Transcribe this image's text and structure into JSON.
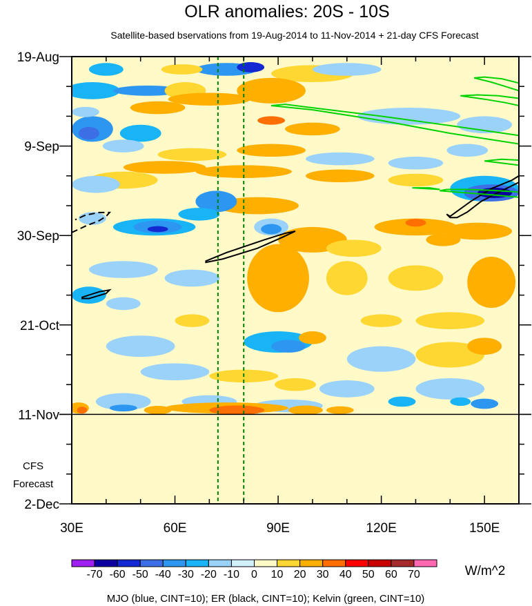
{
  "chart_data": {
    "type": "heatmap",
    "title": "OLR anomalies: 20S - 10S",
    "subtitle": "Satellite-based bservations from 19-Aug-2014 to 11-Nov-2014 + 21-day CFS Forecast",
    "xlabel": "",
    "ylabel": "",
    "xlim": [
      30,
      160
    ],
    "ylim_days": [
      0,
      105
    ],
    "x_ticks": [
      {
        "value": 30,
        "label": "30E"
      },
      {
        "value": 60,
        "label": "60E"
      },
      {
        "value": 90,
        "label": "90E"
      },
      {
        "value": 120,
        "label": "120E"
      },
      {
        "value": 150,
        "label": "150E"
      }
    ],
    "y_ticks": [
      {
        "day": 0,
        "label": "19-Aug"
      },
      {
        "day": 21,
        "label": "9-Sep"
      },
      {
        "day": 42,
        "label": "30-Sep"
      },
      {
        "day": 63,
        "label": "21-Oct"
      },
      {
        "day": 84,
        "label": "11-Nov"
      },
      {
        "day": 105,
        "label": "2-Dec"
      }
    ],
    "forecast_label": [
      "CFS",
      "Forecast"
    ],
    "observation_end_day": 84,
    "reference_lines_lon": [
      72.5,
      80
    ],
    "colorbar": {
      "unit": "W/m^2",
      "levels": [
        -70,
        -60,
        -50,
        -40,
        -30,
        -20,
        -10,
        0,
        10,
        20,
        30,
        40,
        50,
        60,
        70
      ],
      "colors": [
        "#a020f0",
        "#0c00a0",
        "#1428d2",
        "#3c6ee6",
        "#2d96f0",
        "#19b4f5",
        "#9bd2fa",
        "#d2f0fa",
        "#fffac8",
        "#ffd732",
        "#ffaf00",
        "#ff6e00",
        "#ff0000",
        "#c80000",
        "#a52a2a",
        "#ff69b4"
      ]
    },
    "contour_legend": "MJO (blue, CINT=10); ER (black, CINT=10); Kelvin (green, CINT=10)",
    "colors": {
      "er": "#000000",
      "kelvin": "#00d200",
      "mjo": "#0000ff",
      "reference": "#008000"
    },
    "anomaly_patches": [
      {
        "lon": 75,
        "day": 3,
        "rlon": 9,
        "rday": 1.5,
        "value": -30
      },
      {
        "lon": 82,
        "day": 2.5,
        "rlon": 4,
        "rday": 1.2,
        "value": -50
      },
      {
        "lon": 40,
        "day": 3,
        "rlon": 5,
        "rday": 1.5,
        "value": -20
      },
      {
        "lon": 62,
        "day": 3,
        "rlon": 6,
        "rday": 1.2,
        "value": 10
      },
      {
        "lon": 100,
        "day": 4,
        "rlon": 12,
        "rday": 2,
        "value": 10
      },
      {
        "lon": 110,
        "day": 3,
        "rlon": 10,
        "rday": 1.5,
        "value": -10
      },
      {
        "lon": 36,
        "day": 8,
        "rlon": 8,
        "rday": 2,
        "value": -20
      },
      {
        "lon": 52,
        "day": 8,
        "rlon": 10,
        "rday": 1.2,
        "value": -30
      },
      {
        "lon": 63,
        "day": 8,
        "rlon": 6,
        "rday": 2,
        "value": 10
      },
      {
        "lon": 88,
        "day": 8,
        "rlon": 10,
        "rday": 3,
        "value": 20
      },
      {
        "lon": 70,
        "day": 10,
        "rlon": 12,
        "rday": 1.5,
        "value": 20
      },
      {
        "lon": 55,
        "day": 12,
        "rlon": 8,
        "rday": 1.5,
        "value": 20
      },
      {
        "lon": 88,
        "day": 15,
        "rlon": 4,
        "rday": 1,
        "value": 30
      },
      {
        "lon": 100,
        "day": 17,
        "rlon": 8,
        "rday": 1.5,
        "value": 20
      },
      {
        "lon": 36,
        "day": 17,
        "rlon": 6,
        "rday": 3,
        "value": -30
      },
      {
        "lon": 35,
        "day": 18,
        "rlon": 3,
        "rday": 1.5,
        "value": -40
      },
      {
        "lon": 34,
        "day": 13,
        "rlon": 4,
        "rday": 1.2,
        "value": -10
      },
      {
        "lon": 50,
        "day": 18,
        "rlon": 6,
        "rday": 2,
        "value": -20
      },
      {
        "lon": 128,
        "day": 14,
        "rlon": 15,
        "rday": 2,
        "value": -10
      },
      {
        "lon": 150,
        "day": 16,
        "rlon": 8,
        "rday": 2,
        "value": -10
      },
      {
        "lon": 88,
        "day": 22,
        "rlon": 10,
        "rday": 1.5,
        "value": 20
      },
      {
        "lon": 65,
        "day": 23,
        "rlon": 10,
        "rday": 1.5,
        "value": 10
      },
      {
        "lon": 45,
        "day": 21,
        "rlon": 6,
        "rday": 1.5,
        "value": -10
      },
      {
        "lon": 108,
        "day": 24,
        "rlon": 10,
        "rday": 1.5,
        "value": -10
      },
      {
        "lon": 130,
        "day": 25,
        "rlon": 8,
        "rday": 1.5,
        "value": -10
      },
      {
        "lon": 145,
        "day": 22,
        "rlon": 6,
        "rday": 1.5,
        "value": -10
      },
      {
        "lon": 57,
        "day": 26,
        "rlon": 12,
        "rday": 1.5,
        "value": 20
      },
      {
        "lon": 80,
        "day": 27,
        "rlon": 14,
        "rday": 1.5,
        "value": 20
      },
      {
        "lon": 108,
        "day": 28,
        "rlon": 10,
        "rday": 1.5,
        "value": 20
      },
      {
        "lon": 45,
        "day": 29,
        "rlon": 10,
        "rday": 2,
        "value": 10
      },
      {
        "lon": 37,
        "day": 30,
        "rlon": 7,
        "rday": 2,
        "value": -10
      },
      {
        "lon": 130,
        "day": 29,
        "rlon": 8,
        "rday": 1.5,
        "value": 10
      },
      {
        "lon": 150,
        "day": 31,
        "rlon": 10,
        "rday": 3,
        "value": -20
      },
      {
        "lon": 152,
        "day": 32,
        "rlon": 8,
        "rday": 2,
        "value": -40
      },
      {
        "lon": 153,
        "day": 32,
        "rlon": 5,
        "rday": 1.2,
        "value": -60
      },
      {
        "lon": 84,
        "day": 35,
        "rlon": 12,
        "rday": 2,
        "value": 20
      },
      {
        "lon": 72,
        "day": 34,
        "rlon": 6,
        "rday": 2.5,
        "value": -30
      },
      {
        "lon": 67,
        "day": 37,
        "rlon": 6,
        "rday": 1.5,
        "value": -20
      },
      {
        "lon": 54,
        "day": 40,
        "rlon": 12,
        "rday": 2,
        "value": -20
      },
      {
        "lon": 55,
        "day": 40,
        "rlon": 7,
        "rday": 1.5,
        "value": -30
      },
      {
        "lon": 55,
        "day": 40.5,
        "rlon": 3,
        "rday": 0.7,
        "value": -50
      },
      {
        "lon": 36,
        "day": 38,
        "rlon": 4,
        "rday": 1.5,
        "value": -10
      },
      {
        "lon": 88,
        "day": 40,
        "rlon": 5,
        "rday": 2,
        "value": -10
      },
      {
        "lon": 88,
        "day": 40.5,
        "rlon": 3,
        "rday": 1.2,
        "value": -30
      },
      {
        "lon": 130,
        "day": 40,
        "rlon": 12,
        "rday": 2,
        "value": 20
      },
      {
        "lon": 130,
        "day": 39,
        "rlon": 3,
        "rday": 0.9,
        "value": 30
      },
      {
        "lon": 148,
        "day": 41,
        "rlon": 10,
        "rday": 2,
        "value": 20
      },
      {
        "lon": 138,
        "day": 43,
        "rlon": 5,
        "rday": 1.5,
        "value": 20
      },
      {
        "lon": 100,
        "day": 43,
        "rlon": 10,
        "rday": 3,
        "value": 20
      },
      {
        "lon": 112,
        "day": 45,
        "rlon": 8,
        "rday": 2,
        "value": 10
      },
      {
        "lon": 90,
        "day": 52,
        "rlon": 9,
        "rday": 8,
        "value": 20
      },
      {
        "lon": 110,
        "day": 52,
        "rlon": 6,
        "rday": 4,
        "value": 10
      },
      {
        "lon": 152,
        "day": 53,
        "rlon": 7,
        "rday": 6,
        "value": 20
      },
      {
        "lon": 152,
        "day": 55,
        "rlon": 4,
        "rday": 3,
        "value": 20
      },
      {
        "lon": 130,
        "day": 52,
        "rlon": 8,
        "rday": 3,
        "value": 10
      },
      {
        "lon": 45,
        "day": 50,
        "rlon": 10,
        "rday": 2,
        "value": -10
      },
      {
        "lon": 65,
        "day": 52,
        "rlon": 8,
        "rday": 2,
        "value": -10
      },
      {
        "lon": 35,
        "day": 56,
        "rlon": 5,
        "rday": 2,
        "value": -20
      },
      {
        "lon": 45,
        "day": 58,
        "rlon": 5,
        "rday": 1.5,
        "value": -10
      },
      {
        "lon": 65,
        "day": 62,
        "rlon": 5,
        "rday": 1.5,
        "value": 10
      },
      {
        "lon": 140,
        "day": 62,
        "rlon": 10,
        "rday": 2,
        "value": 10
      },
      {
        "lon": 120,
        "day": 62,
        "rlon": 6,
        "rday": 1.5,
        "value": 10
      },
      {
        "lon": 90,
        "day": 67,
        "rlon": 10,
        "rday": 2.5,
        "value": -20
      },
      {
        "lon": 93,
        "day": 68,
        "rlon": 5,
        "rday": 1.5,
        "value": -30
      },
      {
        "lon": 50,
        "day": 68,
        "rlon": 10,
        "rday": 2.5,
        "value": -10
      },
      {
        "lon": 100,
        "day": 66,
        "rlon": 4,
        "rday": 1.5,
        "value": 20
      },
      {
        "lon": 140,
        "day": 70,
        "rlon": 10,
        "rday": 3,
        "value": 10
      },
      {
        "lon": 150,
        "day": 68,
        "rlon": 5,
        "rday": 2,
        "value": 20
      },
      {
        "lon": 120,
        "day": 71,
        "rlon": 10,
        "rday": 3,
        "value": -10
      },
      {
        "lon": 60,
        "day": 74,
        "rlon": 10,
        "rday": 2,
        "value": -10
      },
      {
        "lon": 80,
        "day": 75,
        "rlon": 10,
        "rday": 1.5,
        "value": 10
      },
      {
        "lon": 95,
        "day": 77,
        "rlon": 6,
        "rday": 1.5,
        "value": 10
      },
      {
        "lon": 110,
        "day": 78,
        "rlon": 8,
        "rday": 2,
        "value": -10
      },
      {
        "lon": 140,
        "day": 78,
        "rlon": 10,
        "rday": 2.5,
        "value": -10
      },
      {
        "lon": 45,
        "day": 81,
        "rlon": 8,
        "rday": 2,
        "value": -10
      },
      {
        "lon": 70,
        "day": 81,
        "rlon": 8,
        "rday": 1.5,
        "value": -10
      },
      {
        "lon": 93,
        "day": 82,
        "rlon": 10,
        "rday": 1.5,
        "value": -10
      },
      {
        "lon": 126,
        "day": 81,
        "rlon": 4,
        "rday": 1.2,
        "value": -20
      },
      {
        "lon": 150,
        "day": 81.5,
        "rlon": 4,
        "rday": 1.2,
        "value": -30
      },
      {
        "lon": 143,
        "day": 81,
        "rlon": 3,
        "rday": 1,
        "value": -20
      },
      {
        "lon": 45,
        "day": 82.5,
        "rlon": 4,
        "rday": 0.8,
        "value": -30
      },
      {
        "lon": 75,
        "day": 82.5,
        "rlon": 18,
        "rday": 1.3,
        "value": 20
      },
      {
        "lon": 78,
        "day": 83,
        "rlon": 8,
        "rday": 1.1,
        "value": 30
      },
      {
        "lon": 32,
        "day": 82.5,
        "rlon": 3,
        "rday": 1.3,
        "value": 20
      },
      {
        "lon": 33,
        "day": 83,
        "rlon": 1.5,
        "rday": 0.8,
        "value": 30
      },
      {
        "lon": 98,
        "day": 83,
        "rlon": 5,
        "rday": 1.1,
        "value": 20
      },
      {
        "lon": 55,
        "day": 83,
        "rlon": 4,
        "rday": 1,
        "value": 20
      },
      {
        "lon": 108,
        "day": 83,
        "rlon": 4,
        "rday": 0.9,
        "value": 20
      }
    ],
    "er_contours": [
      {
        "points": [
          [
            69,
            48
          ],
          [
            75,
            46
          ],
          [
            86,
            43
          ],
          [
            92,
            41.5
          ],
          [
            95,
            41
          ],
          [
            91,
            42.5
          ],
          [
            84,
            45
          ],
          [
            74,
            47.5
          ],
          [
            69,
            48.3
          ]
        ],
        "closed": true,
        "dash": false
      },
      {
        "points": [
          [
            33,
            56.5
          ],
          [
            38,
            55.2
          ],
          [
            41,
            54.8
          ],
          [
            40,
            55.6
          ],
          [
            35,
            56.8
          ],
          [
            33,
            56.8
          ]
        ],
        "closed": true,
        "dash": false
      },
      {
        "points": [
          [
            140,
            37.5
          ],
          [
            146,
            34
          ],
          [
            152,
            31
          ],
          [
            158,
            29
          ],
          [
            160,
            28
          ],
          [
            160,
            29.5
          ],
          [
            155,
            31.5
          ],
          [
            149,
            34
          ],
          [
            145,
            36.5
          ],
          [
            142,
            37.8
          ],
          [
            140,
            37.8
          ],
          [
            139,
            37
          ]
        ],
        "closed": true,
        "dash": false
      },
      {
        "points": [
          [
            30,
            41.3
          ],
          [
            34,
            39.8
          ],
          [
            38,
            38.5
          ],
          [
            40,
            37.5
          ],
          [
            41,
            36.6
          ],
          [
            38,
            36.6
          ],
          [
            34,
            37.2
          ],
          [
            31,
            38.3
          ]
        ],
        "closed": false,
        "dash": true
      }
    ],
    "kelvin_contours": [
      {
        "points": [
          [
            88,
            11.5
          ],
          [
            100,
            12.5
          ],
          [
            120,
            15
          ],
          [
            140,
            18
          ],
          [
            160,
            20.5
          ],
          [
            160,
            18.5
          ],
          [
            140,
            16.2
          ],
          [
            120,
            14
          ],
          [
            100,
            12
          ],
          [
            92,
            11.2
          ]
        ],
        "closed": true
      },
      {
        "points": [
          [
            147,
            5
          ],
          [
            152,
            6
          ],
          [
            156,
            7
          ],
          [
            160,
            8
          ],
          [
            160,
            6.2
          ],
          [
            155,
            5.2
          ],
          [
            150,
            4.8
          ]
        ],
        "closed": true
      },
      {
        "points": [
          [
            143,
            9.2
          ],
          [
            150,
            10
          ],
          [
            156,
            10.8
          ],
          [
            160,
            11.5
          ],
          [
            160,
            9.8
          ],
          [
            154,
            9.2
          ],
          [
            148,
            9
          ]
        ],
        "closed": true
      },
      {
        "points": [
          [
            150,
            24.5
          ],
          [
            155,
            25
          ],
          [
            160,
            25.5
          ],
          [
            160,
            24.3
          ],
          [
            155,
            24.1
          ]
        ],
        "closed": true
      },
      {
        "points": [
          [
            137,
            31.5
          ],
          [
            145,
            32
          ],
          [
            153,
            32.5
          ],
          [
            160,
            33
          ],
          [
            160,
            31.8
          ],
          [
            152,
            31.4
          ],
          [
            145,
            31.2
          ],
          [
            139,
            31.2
          ]
        ],
        "closed": true
      },
      {
        "points": [
          [
            129,
            30.8
          ],
          [
            133,
            31
          ],
          [
            137,
            31.2
          ],
          [
            134,
            30.8
          ]
        ],
        "closed": true
      }
    ]
  }
}
